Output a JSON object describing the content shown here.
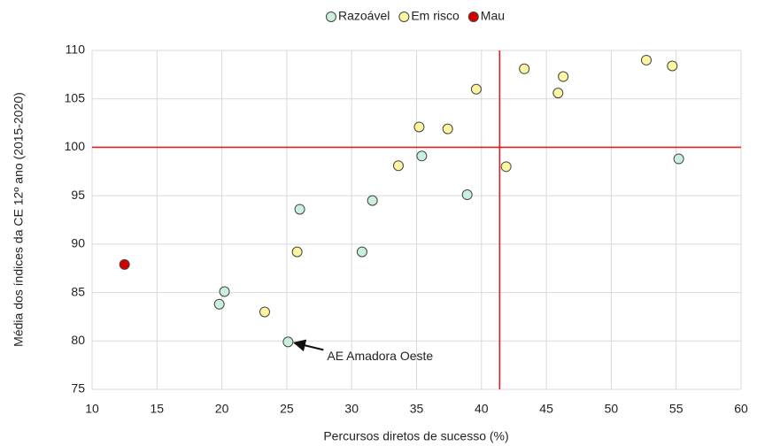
{
  "chart_data": {
    "type": "scatter",
    "x_label": "Percursos diretos de sucesso (%)",
    "y_label": "Média dos índices da CE 12º ano (2015-2020)",
    "xlim": [
      10,
      60
    ],
    "xticks": [
      10,
      15,
      20,
      25,
      30,
      35,
      40,
      45,
      50,
      55,
      60
    ],
    "ylim": [
      75,
      110
    ],
    "yticks": [
      75,
      80,
      85,
      90,
      95,
      100,
      105,
      110
    ],
    "grid": true,
    "legend": "top",
    "reference_lines": {
      "x": 41.4,
      "y": 100,
      "color": "#e02020"
    },
    "series": [
      {
        "name": "Razoável",
        "color": "#c8f0dc",
        "x": [
          20.2,
          19.8,
          25.1,
          26.0,
          30.8,
          31.6,
          35.4,
          38.9,
          55.2
        ],
        "values": [
          85.1,
          83.8,
          79.9,
          93.6,
          89.2,
          94.5,
          99.1,
          95.1,
          98.8
        ]
      },
      {
        "name": "Em risco",
        "color": "#fdf5a0",
        "x": [
          23.3,
          25.8,
          33.6,
          35.2,
          37.4,
          39.6,
          43.3,
          41.9,
          45.9,
          46.3,
          52.7,
          54.7
        ],
        "values": [
          83.0,
          89.2,
          98.1,
          102.1,
          101.9,
          106.0,
          108.1,
          98.0,
          105.6,
          107.3,
          109.0,
          108.4
        ]
      },
      {
        "name": "Mau",
        "color": "#d40000",
        "x": [
          12.5
        ],
        "values": [
          87.9
        ]
      }
    ],
    "annotation": "AE Amadora Oeste"
  }
}
